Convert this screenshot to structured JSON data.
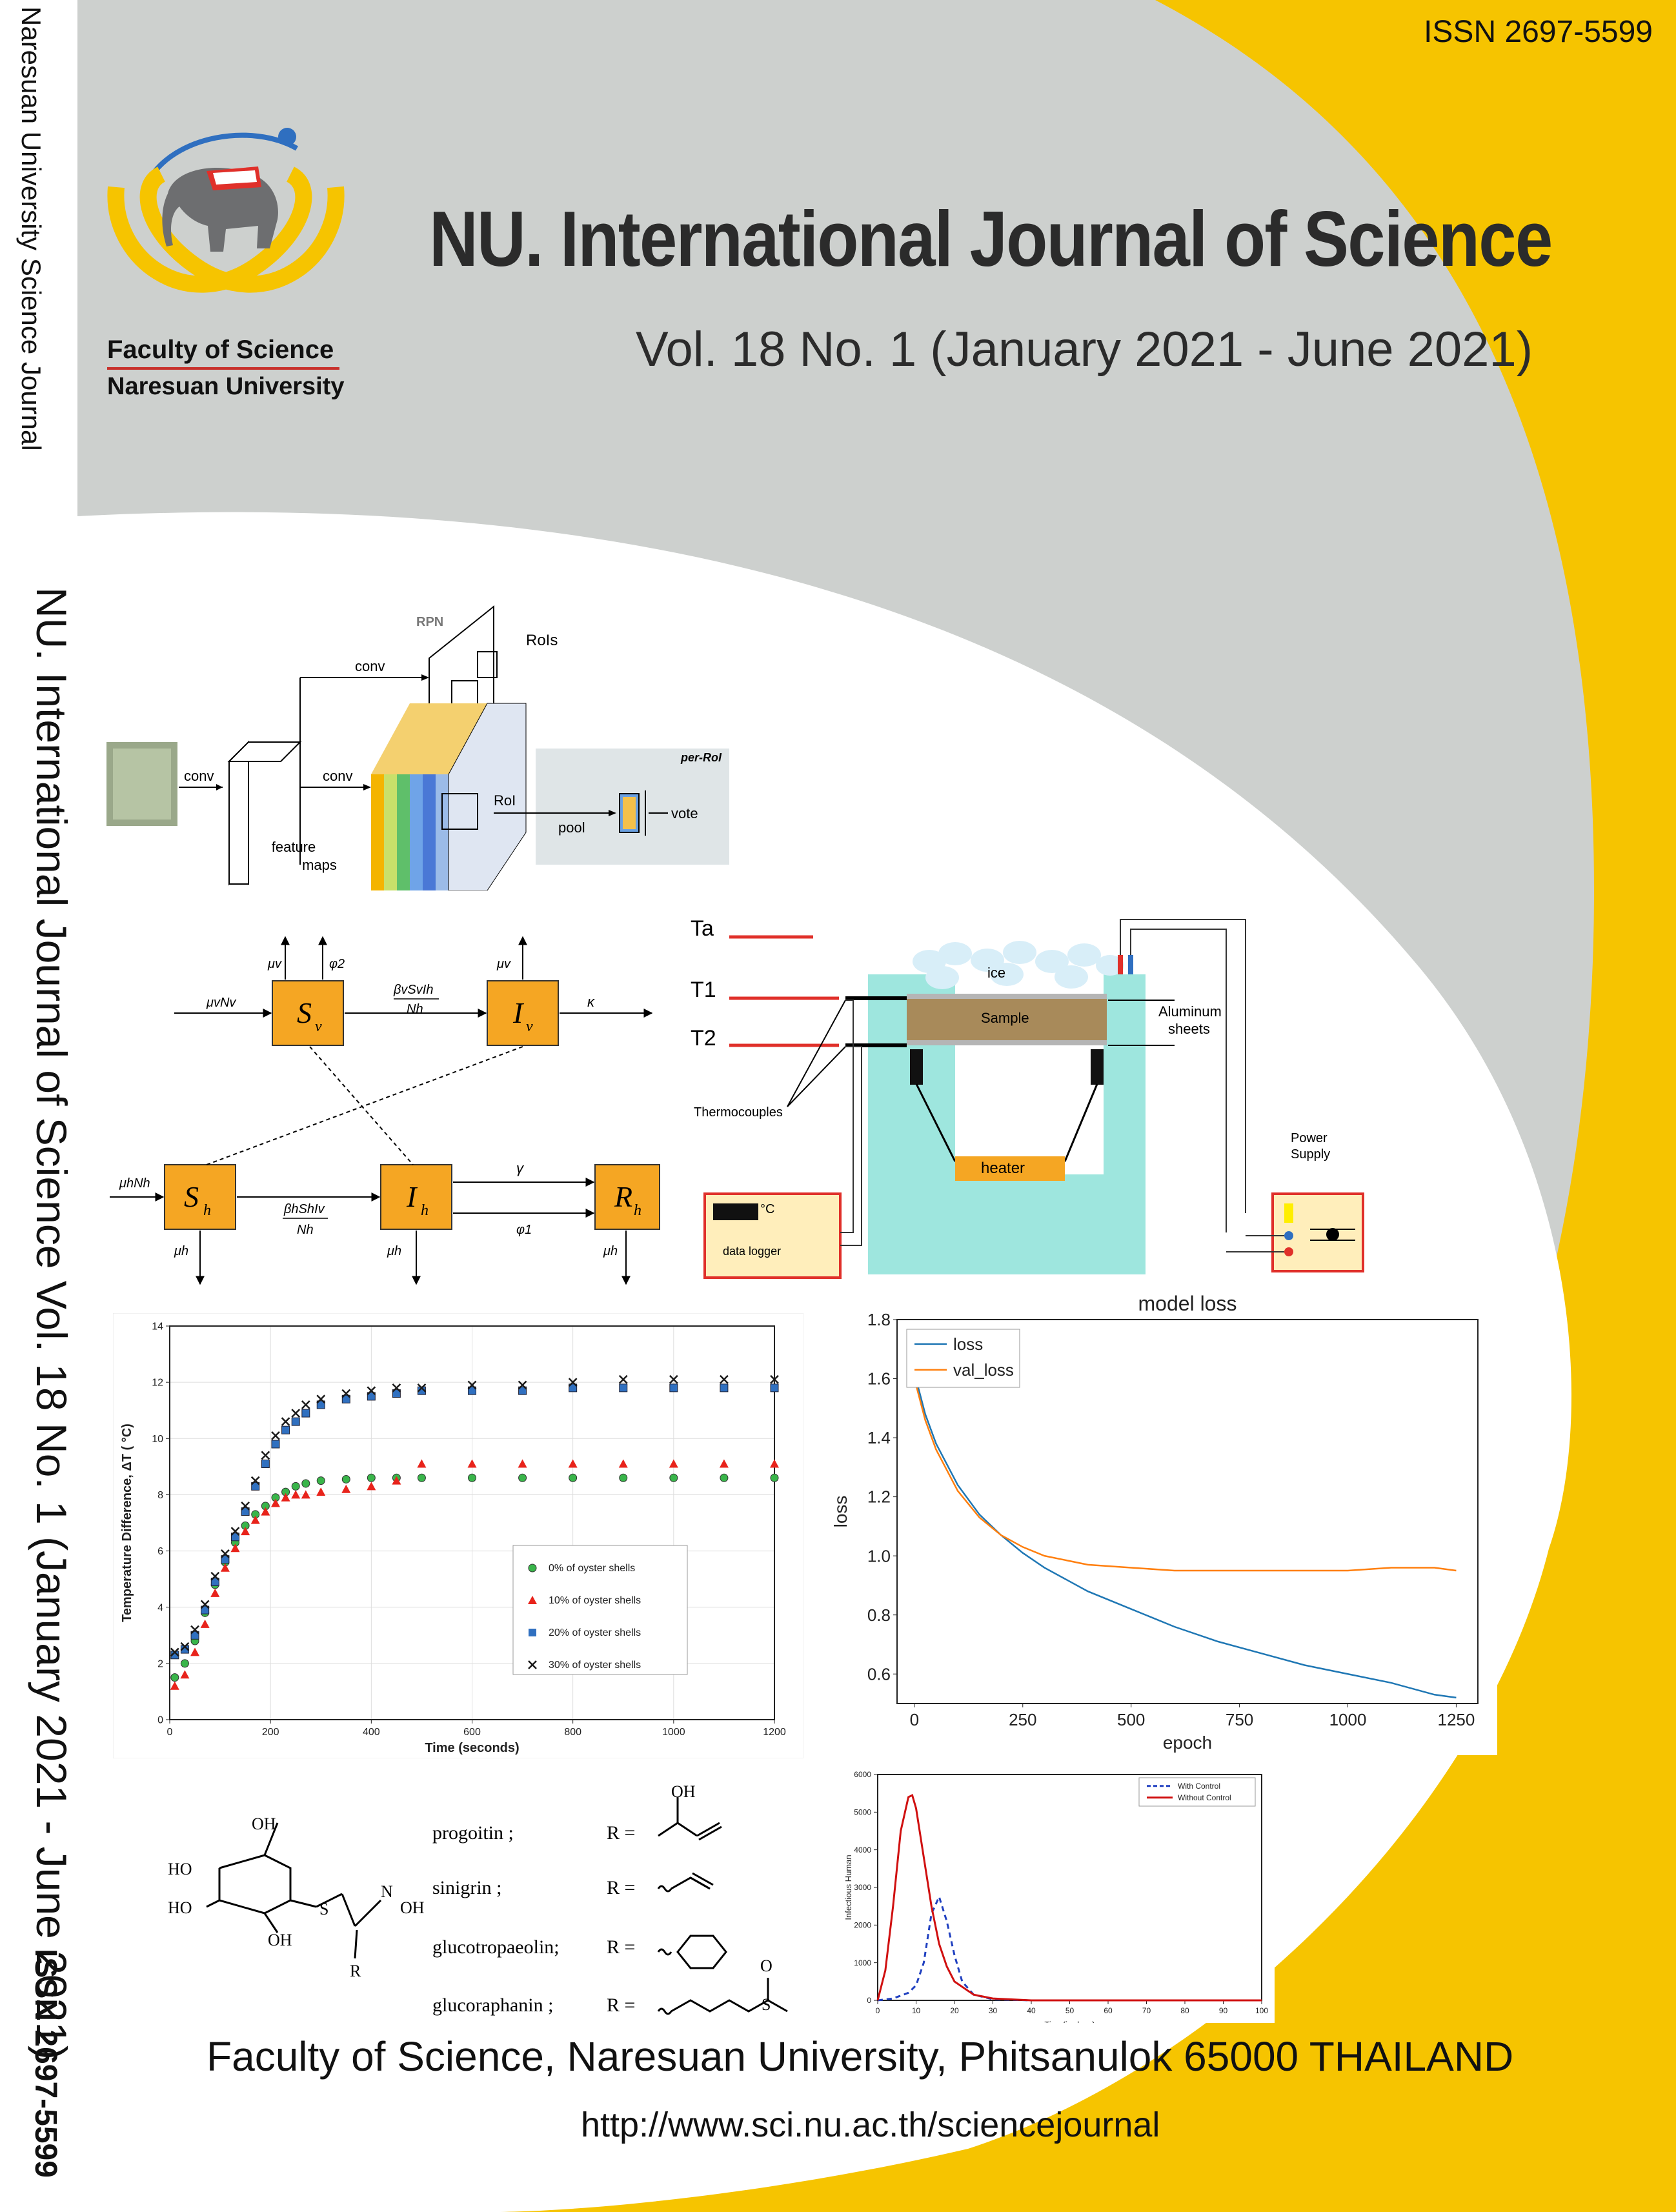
{
  "spine": {
    "journal": "Naresuan University Science Journal",
    "title_vol": "NU. International Journal of Science Vol. 18 No. 1 (January 2021 - June 2021)",
    "issn": "ISSN 2697-5599"
  },
  "header": {
    "issn": "ISSN 2697-5599",
    "title_part1": "NU. International Journal of ",
    "title_part2": "Science",
    "volume": "Vol. 18 No. 1  (January 2021 - June 2021)"
  },
  "logo": {
    "line1": "Faculty of Science",
    "line2": "Naresuan University"
  },
  "footer": {
    "address": "Faculty of Science, Naresuan University, Phitsanulok 65000 THAILAND",
    "url": "http://www.sci.nu.ac.th/sciencejournal"
  },
  "colors": {
    "yellow": "#f6c400",
    "gray": "#cfd2d0",
    "red": "#e0302a",
    "blue": "#2f86c8",
    "orange": "#f07d1f",
    "box": "#f5a623"
  },
  "rcnn": {
    "rpn": "RPN",
    "rois": "RoIs",
    "conv1": "conv",
    "conv2": "conv",
    "conv3": "conv",
    "feature": "feature",
    "maps": "maps",
    "roi": "RoI",
    "pool": "pool",
    "perroi": "per-RoI",
    "vote": "vote"
  },
  "model": {
    "sv": "S",
    "sv_sub": "v",
    "iv": "I",
    "iv_sub": "v",
    "sh": "S",
    "sh_sub": "h",
    "ih": "I",
    "ih_sub": "h",
    "rh": "R",
    "rh_sub": "h",
    "mu_v": "μv",
    "phi2": "φ2",
    "munv": "μvNv",
    "kappa": "κ",
    "beta_top": "βvSvIh",
    "nh_top": "Nh",
    "beta_bot": "βhShIv",
    "nh_bot": "Nh",
    "muhnh": "μhNh",
    "mu_h": "μh",
    "gamma": "γ",
    "phi1": "φ1"
  },
  "apparatus": {
    "ta": "Ta",
    "t1": "T1",
    "t2": "T2",
    "ice": "ice",
    "sample": "Sample",
    "aluminum1": "Aluminum",
    "aluminum2": "sheets",
    "thermocouples": "Thermocouples",
    "heater": "heater",
    "power1": "Power",
    "power2": "Supply",
    "logger": "data logger",
    "deg": "°C"
  },
  "chart_data": [
    {
      "type": "scatter",
      "xlabel": "Time (seconds)",
      "ylabel": "Temperature Difference, ΔT ( °C)",
      "xlim": [
        0,
        1200
      ],
      "ylim": [
        0,
        14
      ],
      "xticks": [
        "0",
        "200",
        "400",
        "600",
        "800",
        "1000",
        "1200"
      ],
      "yticks": [
        "0",
        "2",
        "4",
        "6",
        "8",
        "10",
        "12",
        "14"
      ],
      "grid": true,
      "legend_position": "center-right",
      "series": [
        {
          "name": "0% of oyster shells",
          "color": "#39b54a",
          "x": [
            10,
            30,
            50,
            70,
            90,
            110,
            130,
            150,
            170,
            190,
            210,
            230,
            250,
            270,
            300,
            350,
            400,
            450,
            500,
            600,
            700,
            800,
            900,
            1000,
            1100,
            1200
          ],
          "y": [
            1.5,
            2.0,
            2.8,
            3.8,
            4.8,
            5.6,
            6.3,
            6.9,
            7.3,
            7.6,
            7.9,
            8.1,
            8.3,
            8.4,
            8.5,
            8.55,
            8.6,
            8.6,
            8.6,
            8.6,
            8.6,
            8.6,
            8.6,
            8.6,
            8.6,
            8.6
          ]
        },
        {
          "name": "10% of oyster shells",
          "color": "#e8231b",
          "x": [
            10,
            30,
            50,
            70,
            90,
            110,
            130,
            150,
            170,
            190,
            210,
            230,
            250,
            270,
            300,
            350,
            400,
            450,
            500,
            600,
            700,
            800,
            900,
            1000,
            1100,
            1200
          ],
          "y": [
            1.2,
            1.6,
            2.4,
            3.4,
            4.5,
            5.4,
            6.1,
            6.7,
            7.1,
            7.4,
            7.7,
            7.9,
            8.0,
            8.0,
            8.1,
            8.2,
            8.3,
            8.5,
            9.1,
            9.1,
            9.1,
            9.1,
            9.1,
            9.1,
            9.1,
            9.1
          ]
        },
        {
          "name": "20% of oyster shells",
          "color": "#3070c0",
          "x": [
            10,
            30,
            50,
            70,
            90,
            110,
            130,
            150,
            170,
            190,
            210,
            230,
            250,
            270,
            300,
            350,
            400,
            450,
            500,
            600,
            700,
            800,
            900,
            1000,
            1100,
            1200
          ],
          "y": [
            2.3,
            2.5,
            3.0,
            3.9,
            4.9,
            5.7,
            6.5,
            7.4,
            8.3,
            9.1,
            9.8,
            10.3,
            10.6,
            10.9,
            11.2,
            11.4,
            11.5,
            11.6,
            11.7,
            11.7,
            11.7,
            11.8,
            11.8,
            11.8,
            11.8,
            11.8
          ]
        },
        {
          "name": "30% of oyster shells",
          "color": "#1a1a1a",
          "x": [
            10,
            30,
            50,
            70,
            90,
            110,
            130,
            150,
            170,
            190,
            210,
            230,
            250,
            270,
            300,
            350,
            400,
            450,
            500,
            600,
            700,
            800,
            900,
            1000,
            1100,
            1200
          ],
          "y": [
            2.4,
            2.6,
            3.2,
            4.1,
            5.1,
            5.9,
            6.7,
            7.6,
            8.5,
            9.4,
            10.1,
            10.6,
            10.9,
            11.2,
            11.4,
            11.6,
            11.7,
            11.8,
            11.8,
            11.9,
            11.9,
            12.0,
            12.1,
            12.1,
            12.1,
            12.1
          ]
        }
      ]
    },
    {
      "type": "line",
      "title": "model loss",
      "xlabel": "epoch",
      "ylabel": "loss",
      "xlim": [
        -40,
        1300
      ],
      "ylim": [
        0.5,
        1.8
      ],
      "xticks": [
        "0",
        "250",
        "500",
        "750",
        "1000",
        "1250"
      ],
      "yticks": [
        "0.6",
        "0.8",
        "1.0",
        "1.2",
        "1.4",
        "1.6",
        "1.8"
      ],
      "legend_position": "top-left",
      "series": [
        {
          "name": "loss",
          "color": "#1f77b4",
          "x": [
            0,
            25,
            50,
            100,
            150,
            200,
            250,
            300,
            400,
            500,
            600,
            700,
            800,
            900,
            1000,
            1100,
            1200,
            1250
          ],
          "y": [
            1.62,
            1.48,
            1.38,
            1.24,
            1.14,
            1.07,
            1.01,
            0.96,
            0.88,
            0.82,
            0.76,
            0.71,
            0.67,
            0.63,
            0.6,
            0.57,
            0.53,
            0.52
          ]
        },
        {
          "name": "val_loss",
          "color": "#ff7f0e",
          "x": [
            0,
            25,
            50,
            100,
            150,
            200,
            250,
            300,
            400,
            500,
            600,
            700,
            800,
            900,
            1000,
            1100,
            1200,
            1250
          ],
          "y": [
            1.6,
            1.46,
            1.36,
            1.22,
            1.13,
            1.07,
            1.03,
            1.0,
            0.97,
            0.96,
            0.95,
            0.95,
            0.95,
            0.95,
            0.95,
            0.96,
            0.96,
            0.95
          ]
        }
      ]
    },
    {
      "type": "line",
      "xlabel": "Time(in days)",
      "ylabel": "Infectious Human",
      "xlim": [
        0,
        100
      ],
      "ylim": [
        0,
        6000
      ],
      "xticks": [
        "0",
        "10",
        "20",
        "30",
        "40",
        "50",
        "60",
        "70",
        "80",
        "90",
        "100"
      ],
      "yticks": [
        "0",
        "1000",
        "2000",
        "3000",
        "4000",
        "5000",
        "6000"
      ],
      "legend_position": "top-right",
      "series": [
        {
          "name": "With Control",
          "color": "#2040c0",
          "dash": true,
          "x": [
            0,
            4,
            8,
            10,
            12,
            14,
            16,
            18,
            20,
            22,
            25,
            30,
            40,
            60,
            100
          ],
          "y": [
            0,
            50,
            200,
            400,
            1000,
            2300,
            2750,
            2100,
            1200,
            500,
            150,
            30,
            0,
            0,
            0
          ]
        },
        {
          "name": "Without Control",
          "color": "#d01010",
          "x": [
            0,
            2,
            4,
            6,
            8,
            9,
            10,
            12,
            14,
            16,
            18,
            20,
            25,
            30,
            40,
            60,
            100
          ],
          "y": [
            0,
            800,
            2500,
            4500,
            5400,
            5450,
            5100,
            3800,
            2500,
            1500,
            900,
            500,
            150,
            50,
            0,
            0,
            0
          ]
        }
      ]
    }
  ],
  "chem": {
    "progoitin": "progoitin ;",
    "sinigrin": "sinigrin ;",
    "glucotro": "glucotropaeolin;",
    "glucora": "glucoraphanin ;",
    "r_eq": "R =",
    "oh": "OH",
    "ho": "HO",
    "n": "N",
    "s": "S",
    "r": "R",
    "o": "O"
  }
}
